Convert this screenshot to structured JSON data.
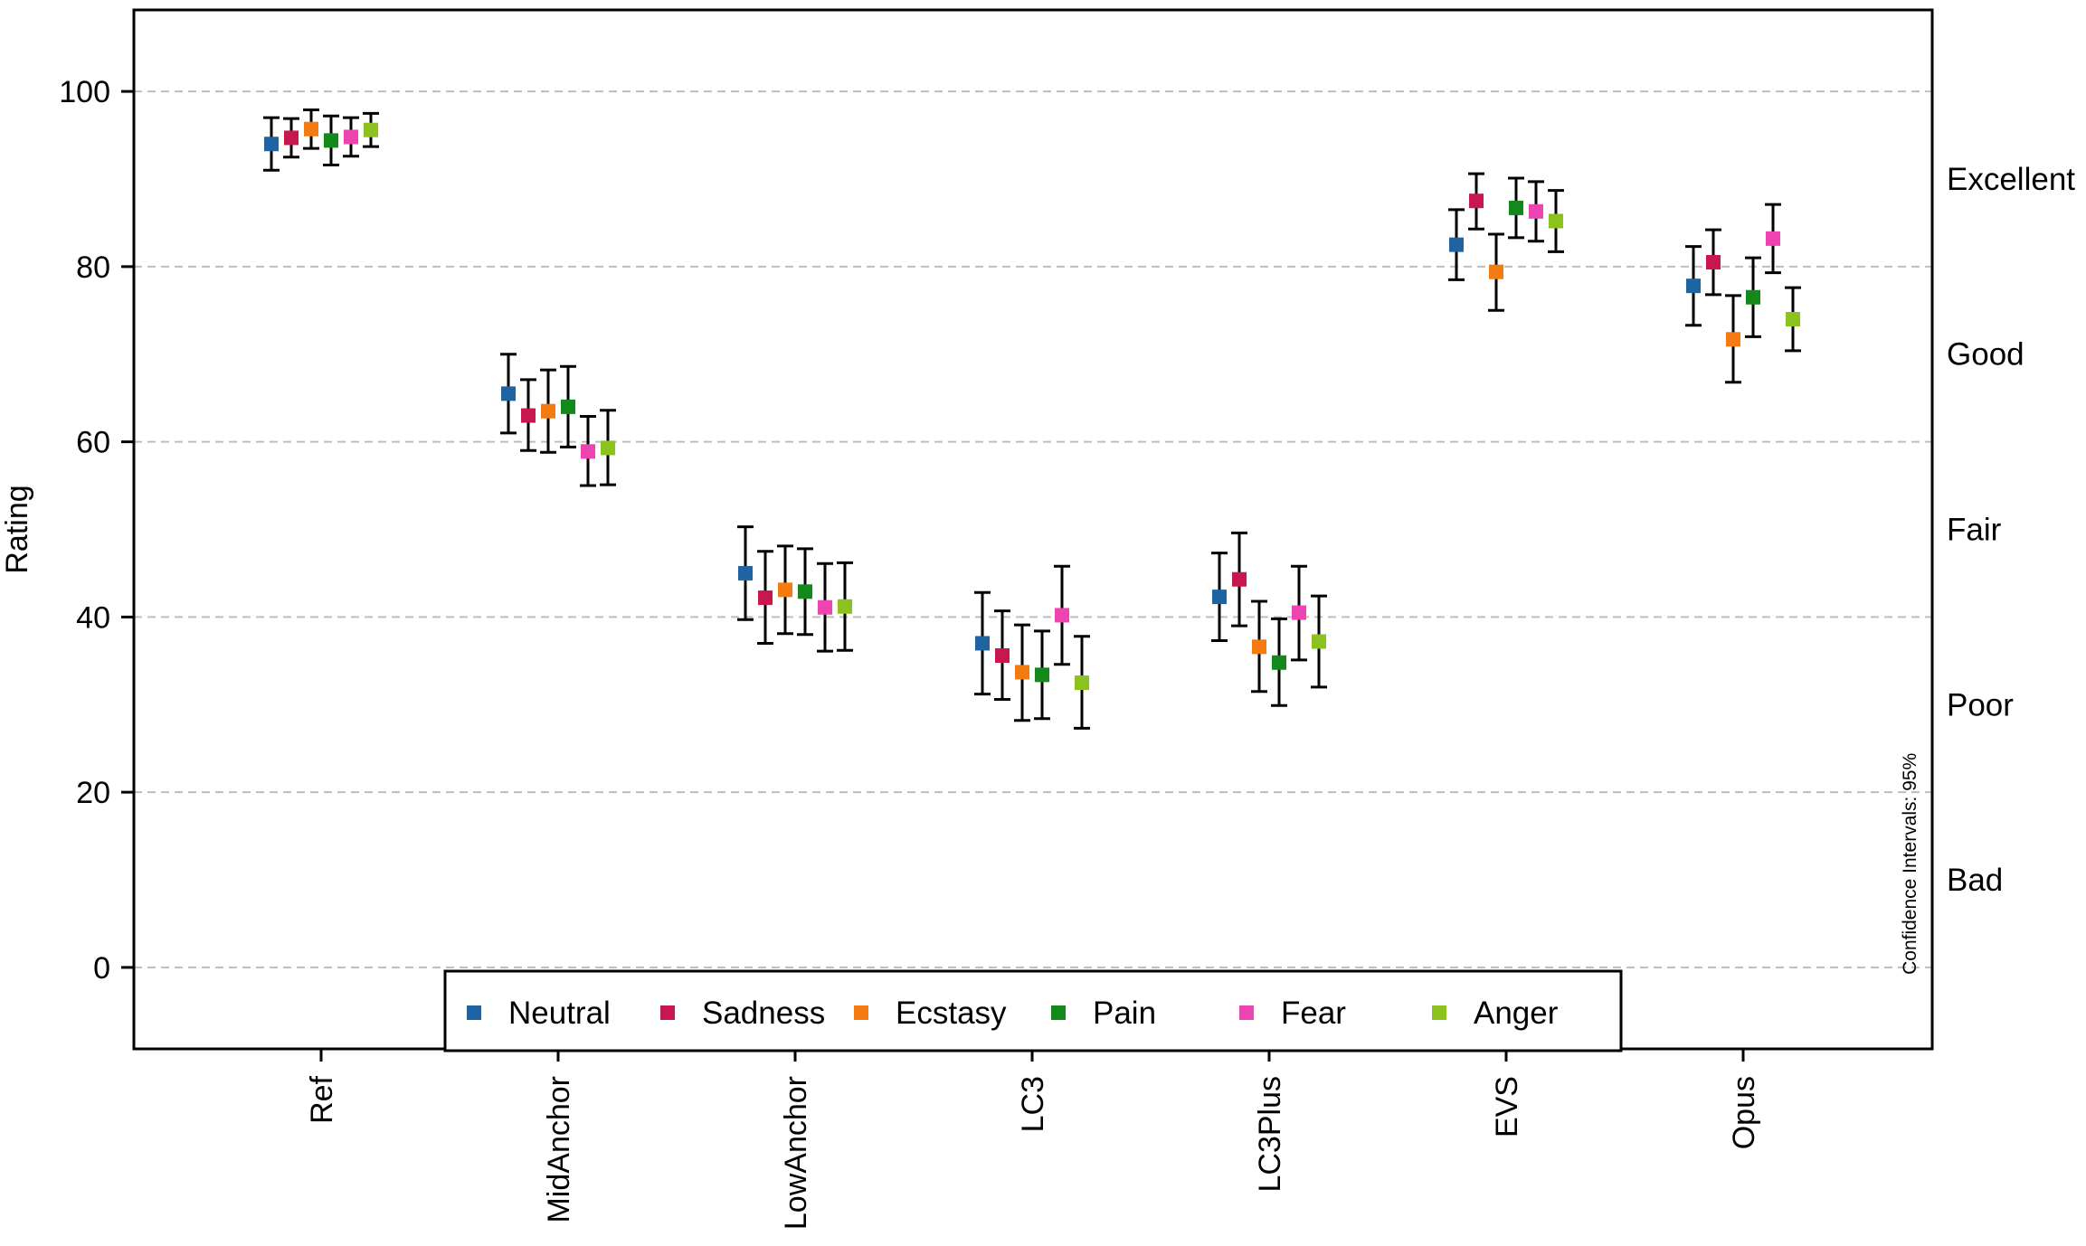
{
  "chart_data": {
    "type": "scatter",
    "ylabel": "Rating",
    "xlabel": "",
    "ylim": [
      -9.3,
      109.3
    ],
    "yticks": [
      0,
      20,
      40,
      60,
      80,
      100
    ],
    "grid": "horizontal dashed",
    "categories": [
      "Ref",
      "MidAnchor",
      "LowAnchor",
      "LC3",
      "LC3Plus",
      "EVS",
      "Opus"
    ],
    "quality_labels": [
      {
        "label": "Excellent",
        "value": 90
      },
      {
        "label": "Good",
        "value": 70
      },
      {
        "label": "Fair",
        "value": 50
      },
      {
        "label": "Poor",
        "value": 30
      },
      {
        "label": "Bad",
        "value": 10
      }
    ],
    "annotation": "Confidence Intervals: 95%",
    "legend_position": "bottom-center",
    "series": [
      {
        "name": "Neutral",
        "color": "#1f64a0",
        "values": [
          94,
          65.5,
          45,
          37,
          42.3,
          82.5,
          77.8
        ],
        "ci_low": [
          91,
          61,
          39.7,
          31.2,
          37.3,
          78.5,
          73.3
        ],
        "ci_high": [
          97,
          70,
          50.3,
          42.8,
          47.3,
          86.5,
          82.3
        ]
      },
      {
        "name": "Sadness",
        "color": "#c8174f",
        "values": [
          94.7,
          63,
          42.2,
          35.6,
          44.3,
          87.5,
          80.5
        ],
        "ci_low": [
          92.5,
          59,
          37,
          30.6,
          39,
          84.3,
          76.8
        ],
        "ci_high": [
          96.9,
          67.1,
          47.5,
          40.7,
          49.6,
          90.6,
          84.2
        ]
      },
      {
        "name": "Ecstasy",
        "color": "#f47a12",
        "values": [
          95.7,
          63.5,
          43.1,
          33.7,
          36.6,
          79.4,
          71.7
        ],
        "ci_low": [
          93.5,
          58.8,
          38.1,
          28.2,
          31.5,
          75,
          66.8
        ],
        "ci_high": [
          97.9,
          68.2,
          48.1,
          39.1,
          41.8,
          83.7,
          76.7
        ]
      },
      {
        "name": "Pain",
        "color": "#14891b",
        "values": [
          94.4,
          64,
          42.9,
          33.4,
          34.8,
          86.7,
          76.5
        ],
        "ci_low": [
          91.6,
          59.4,
          38,
          28.4,
          29.9,
          83.3,
          72
        ],
        "ci_high": [
          97.2,
          68.6,
          47.8,
          38.4,
          39.8,
          90.1,
          81
        ]
      },
      {
        "name": "Fear",
        "color": "#ee44b1",
        "values": [
          94.8,
          58.9,
          41.1,
          40.2,
          40.5,
          86.3,
          83.2
        ],
        "ci_low": [
          92.6,
          55,
          36.1,
          34.6,
          35.1,
          82.9,
          79.3
        ],
        "ci_high": [
          97,
          62.9,
          46.1,
          45.8,
          45.8,
          89.7,
          87.1
        ]
      },
      {
        "name": "Anger",
        "color": "#8cc21e",
        "values": [
          95.6,
          59.3,
          41.2,
          32.5,
          37.2,
          85.2,
          74
        ],
        "ci_low": [
          93.7,
          55.1,
          36.2,
          27.3,
          32,
          81.7,
          70.4
        ],
        "ci_high": [
          97.5,
          63.6,
          46.2,
          37.8,
          42.4,
          88.7,
          77.6
        ]
      }
    ]
  }
}
